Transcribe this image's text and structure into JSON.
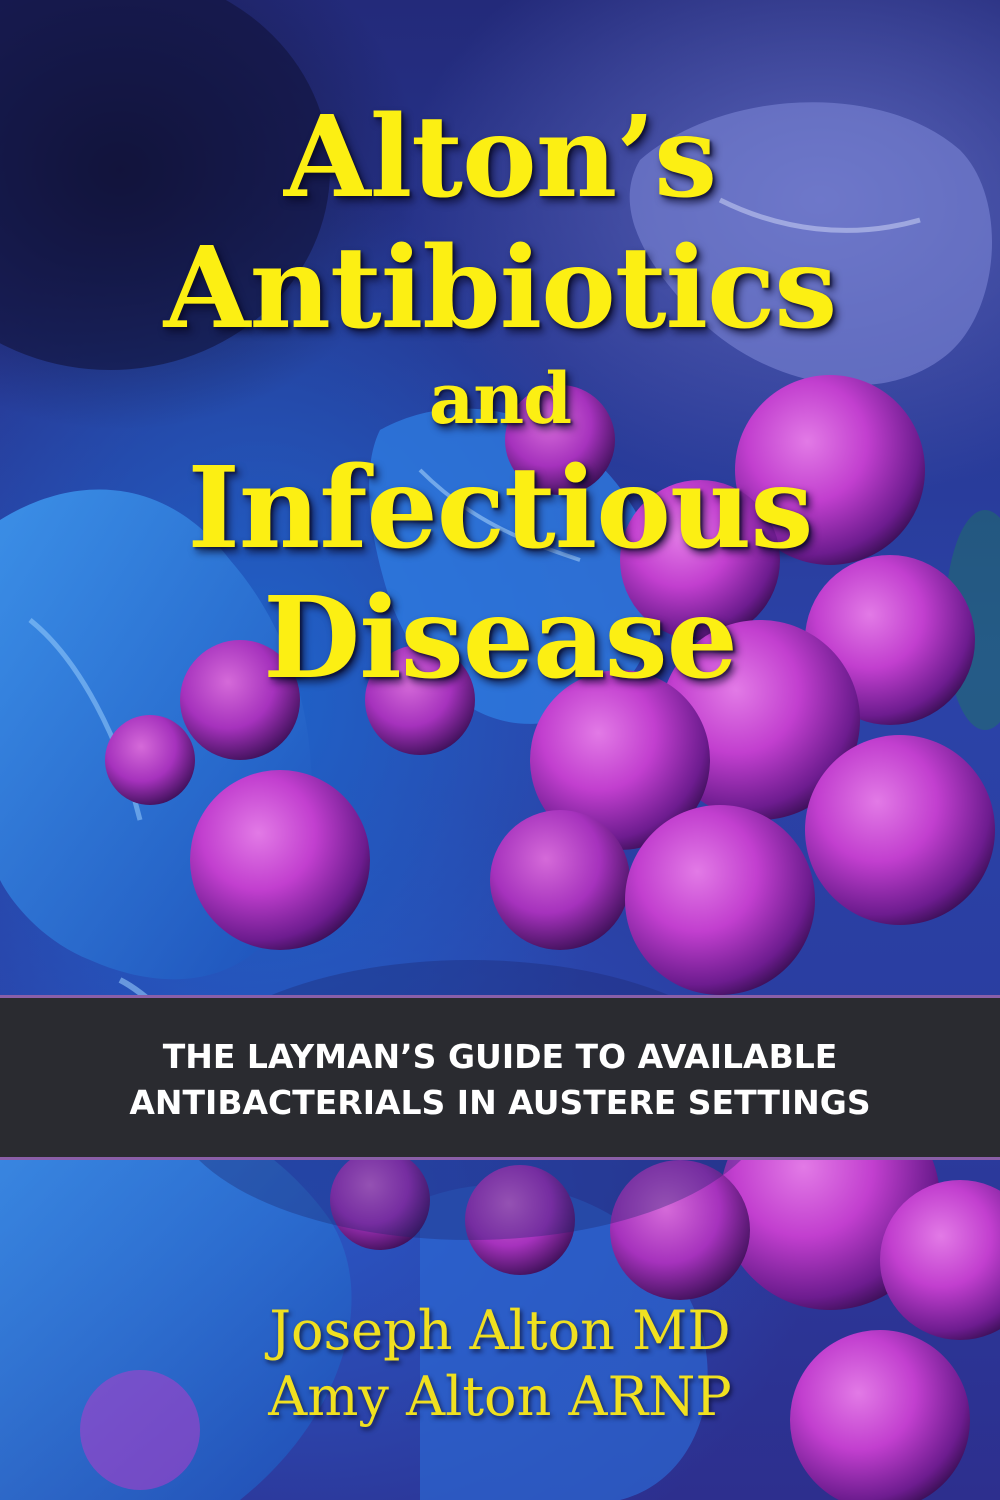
{
  "cover": {
    "title_lines": [
      "Alton’s",
      "Antibiotics",
      "and",
      "Infectious",
      "Disease"
    ],
    "subtitle_lines": [
      "THE LAYMAN’S GUIDE TO AVAILABLE",
      "ANTIBACTERIALS IN AUSTERE SETTINGS"
    ],
    "authors": [
      "Joseph Alton MD",
      "Amy Alton ARNP"
    ]
  },
  "colors": {
    "title": "#fcef13",
    "band": "#2a2b30",
    "band_border": "#8a5fa8",
    "bacteria": "#c23fcf",
    "cell": "#2a7ae0"
  }
}
